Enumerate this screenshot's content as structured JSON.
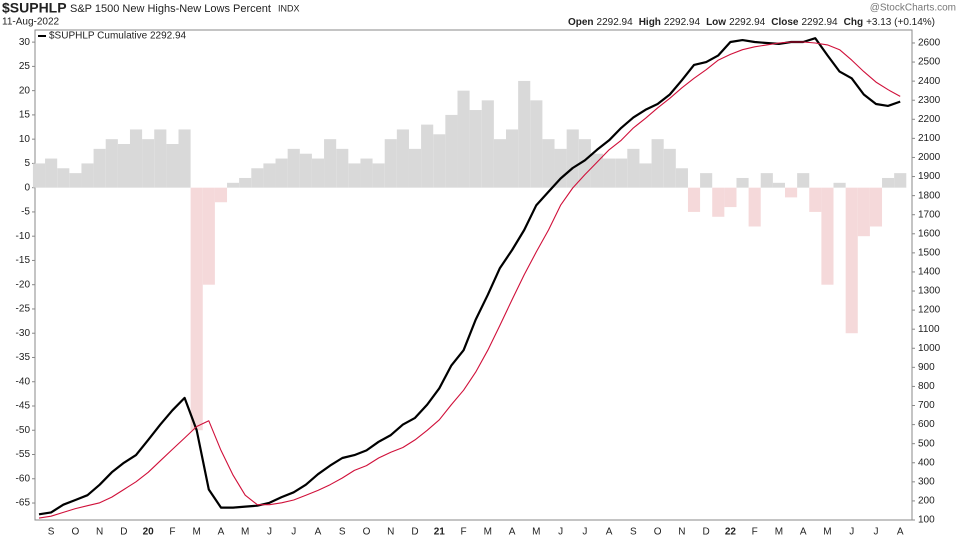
{
  "header": {
    "symbol": "$SUPHLP",
    "description": "S&P 1500 New Highs-New Lows Percent",
    "exchange": "INDX",
    "date": "11-Aug-2022",
    "watermark": "@StockCharts.com",
    "quote": [
      {
        "label": "Open",
        "value": 2292.94
      },
      {
        "label": "High",
        "value": 2292.94
      },
      {
        "label": "Low",
        "value": 2292.94
      },
      {
        "label": "Close",
        "value": 2292.94
      },
      {
        "label": "Chg",
        "value": "+3.13 (+0.14%)"
      }
    ]
  },
  "chart_data": {
    "type": "line",
    "categories": [
      null,
      "S",
      null,
      "O",
      null,
      "N",
      null,
      "D",
      null,
      "20",
      null,
      "F",
      null,
      "M",
      null,
      "A",
      null,
      "M",
      null,
      "J",
      null,
      "J",
      null,
      "A",
      null,
      "S",
      null,
      "O",
      null,
      "N",
      null,
      "D",
      null,
      "21",
      null,
      "F",
      null,
      "M",
      null,
      "A",
      null,
      "M",
      null,
      "J",
      null,
      "J",
      null,
      "A",
      null,
      "S",
      null,
      "O",
      null,
      "N",
      null,
      "D",
      null,
      "22",
      null,
      "F",
      null,
      "M",
      null,
      "A",
      null,
      "M",
      null,
      "J",
      null,
      "J",
      null,
      "A"
    ],
    "ylim": [
      -68.5,
      32.5
    ],
    "yticks": [
      30,
      25,
      20,
      15,
      10,
      5,
      0,
      -5,
      -10,
      -15,
      -20,
      -25,
      -30,
      -35,
      -40,
      -45,
      -50,
      -55,
      -60,
      -65
    ],
    "y2lim": [
      100,
      2668
    ],
    "y2ticks": [
      2600,
      2500,
      2400,
      2300,
      2200,
      2100,
      2000,
      1900,
      1800,
      1700,
      1600,
      1500,
      1400,
      1300,
      1200,
      1100,
      1000,
      900,
      800,
      700,
      600,
      500,
      400,
      300,
      200,
      100
    ],
    "series": [
      {
        "type": "histogram",
        "color": "#d9d9d9",
        "negative_color": "#f5d9da",
        "values": [
          5,
          6,
          4,
          3,
          5,
          8,
          10,
          9,
          12,
          10,
          12,
          9,
          12,
          -50,
          -20,
          -3,
          1,
          2,
          4,
          5,
          6,
          8,
          7,
          6,
          10,
          8,
          5,
          6,
          5,
          10,
          12,
          8,
          13,
          11,
          15,
          20,
          16,
          18,
          10,
          12,
          22,
          18,
          10,
          8,
          12,
          10,
          7,
          6,
          6,
          8,
          5,
          10,
          8,
          4,
          -5,
          3,
          -6,
          -4,
          2,
          -8,
          3,
          1,
          -2,
          3,
          -5,
          -20,
          1,
          -30,
          -10,
          -8,
          2,
          3
        ]
      },
      {
        "name": "$SUPHLP Cumulative 2292.94",
        "color": "#000000",
        "axis": "y2",
        "width": 2.2,
        "values": [
          130,
          140,
          180,
          205,
          230,
          285,
          350,
          400,
          440,
          520,
          600,
          675,
          740,
          570,
          260,
          165,
          165,
          170,
          175,
          190,
          220,
          245,
          285,
          340,
          385,
          425,
          440,
          465,
          510,
          545,
          600,
          635,
          705,
          790,
          910,
          990,
          1150,
          1280,
          1420,
          1515,
          1620,
          1750,
          1820,
          1890,
          1945,
          1985,
          2040,
          2090,
          2155,
          2210,
          2250,
          2280,
          2330,
          2405,
          2485,
          2500,
          2535,
          2605,
          2615,
          2605,
          2600,
          2595,
          2605,
          2605,
          2625,
          2535,
          2450,
          2415,
          2330,
          2280,
          2270,
          2292.94
        ]
      },
      {
        "color": "#d0103a",
        "axis": "y2",
        "width": 1.1,
        "values": [
          110,
          120,
          140,
          160,
          175,
          190,
          220,
          260,
          300,
          350,
          410,
          470,
          530,
          590,
          620,
          465,
          335,
          230,
          180,
          180,
          190,
          205,
          230,
          255,
          285,
          320,
          360,
          385,
          425,
          455,
          480,
          520,
          570,
          625,
          705,
          780,
          875,
          990,
          1120,
          1255,
          1385,
          1505,
          1620,
          1750,
          1840,
          1910,
          1975,
          2040,
          2090,
          2155,
          2205,
          2260,
          2310,
          2365,
          2415,
          2460,
          2510,
          2540,
          2565,
          2580,
          2590,
          2600,
          2605,
          2605,
          2600,
          2590,
          2565,
          2510,
          2450,
          2395,
          2355,
          2320
        ]
      }
    ]
  }
}
